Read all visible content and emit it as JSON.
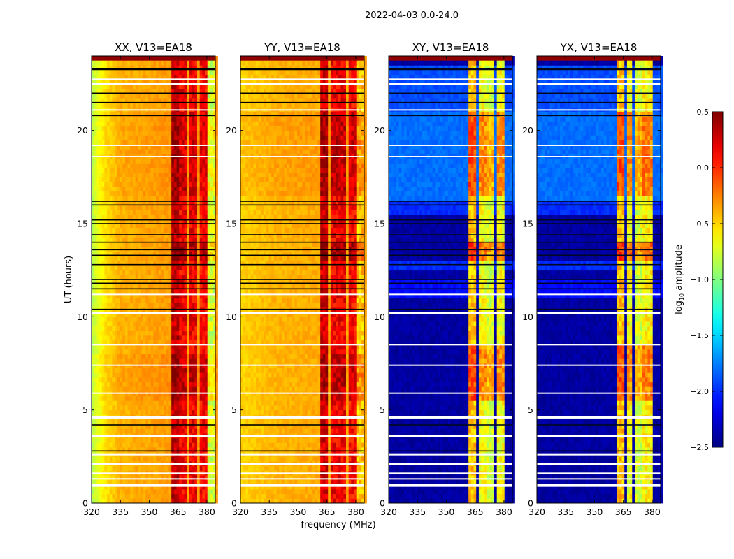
{
  "chart_data": {
    "type": "heatmap",
    "title": "2022-04-03 0.0-24.0",
    "xlabel": "frequency (MHz)",
    "ylabel": "UT (hours)",
    "xlim": [
      320,
      384.4
    ],
    "ylim": [
      0,
      24
    ],
    "xticks": [
      320,
      335,
      350,
      365,
      380
    ],
    "yticks": [
      0,
      5,
      10,
      15,
      20
    ],
    "time_bin_hours": 0.25,
    "channel_width_mhz": 1.34,
    "colorbar": {
      "label_main": "log",
      "label_sub": "10",
      "label_rest": " amplitude",
      "colormap": "jet",
      "range": [
        -2.5,
        0.5
      ],
      "ticks": [
        "0.5",
        "0.0",
        "−0.5",
        "−1.0",
        "−1.5",
        "−2.0",
        "−2.5"
      ],
      "tick_values": [
        0.5,
        0.0,
        -0.5,
        -1.0,
        -1.5,
        -2.0,
        -2.5
      ]
    },
    "flagged_white_hours": [
      [
        0.95,
        0.15
      ],
      [
        1.3,
        0.06
      ],
      [
        1.6,
        0.06
      ],
      [
        2.1,
        0.06
      ],
      [
        2.6,
        0.06
      ],
      [
        3.6,
        0.06
      ],
      [
        4.6,
        0.12
      ],
      [
        5.9,
        0.05
      ],
      [
        7.4,
        0.05
      ],
      [
        8.5,
        0.05
      ],
      [
        10.2,
        0.08
      ],
      [
        11.2,
        0.06
      ],
      [
        18.6,
        0.06
      ],
      [
        19.2,
        0.05
      ],
      [
        21.1,
        0.06
      ],
      [
        22.5,
        0.06
      ],
      [
        22.75,
        0.05
      ]
    ],
    "zero_black_hours": [
      [
        2.8,
        0.05
      ],
      [
        4.2,
        0.06
      ],
      [
        10.4,
        0.06
      ],
      [
        11.5,
        0.05
      ],
      [
        11.8,
        0.05
      ],
      [
        12.0,
        0.05
      ],
      [
        12.8,
        0.05
      ],
      [
        13.3,
        0.05
      ],
      [
        13.6,
        0.05
      ],
      [
        14.0,
        0.05
      ],
      [
        14.4,
        0.05
      ],
      [
        15.0,
        0.05
      ],
      [
        15.2,
        0.05
      ],
      [
        16.0,
        0.05
      ],
      [
        16.2,
        0.05
      ],
      [
        20.8,
        0.06
      ],
      [
        21.5,
        0.05
      ],
      [
        22.0,
        0.05
      ],
      [
        23.3,
        0.12
      ]
    ],
    "saturated_top_hours": [
      23.75,
      24.0,
      0.45
    ],
    "panels": [
      {
        "title": "XX, V13=EA18",
        "base_profile": [
          [
            320,
            -0.85
          ],
          [
            327,
            -0.55
          ],
          [
            335,
            -0.4
          ],
          [
            362,
            -0.33
          ],
          [
            384.4,
            -0.33
          ]
        ],
        "bands": [
          [
            362,
            365.5,
            0.3
          ],
          [
            366.2,
            370,
            0.15
          ],
          [
            370.6,
            375,
            0.15
          ],
          [
            376,
            380,
            0.1
          ],
          [
            380.3,
            384.4,
            -0.75
          ]
        ],
        "background_boost": [
          [
            5.5,
            8,
            0.05
          ],
          [
            16.5,
            21,
            0.03
          ]
        ],
        "band_boost": [
          [
            5.5,
            8,
            0.15
          ],
          [
            13,
            14,
            0.2
          ],
          [
            16.5,
            21,
            0.1
          ]
        ]
      },
      {
        "title": "YY, V13=EA18",
        "base_profile": [
          [
            320,
            -0.5
          ],
          [
            340,
            -0.4
          ],
          [
            384.4,
            -0.35
          ]
        ],
        "bands": [
          [
            362,
            366,
            0.25
          ],
          [
            366.8,
            370.5,
            0.15
          ],
          [
            371.2,
            375.5,
            0.15
          ],
          [
            376.3,
            380.3,
            0.1
          ],
          [
            380.5,
            384.4,
            -0.45
          ]
        ],
        "background_boost": [
          [
            16.5,
            21,
            0.05
          ]
        ],
        "band_boost": [
          [
            5.5,
            8,
            0.15
          ],
          [
            13,
            14,
            0.25
          ],
          [
            16.5,
            21,
            0.15
          ]
        ]
      },
      {
        "title": "XY, V13=EA18",
        "base_profile": [
          [
            320,
            -2.4
          ],
          [
            384.4,
            -2.4
          ]
        ],
        "bands": [
          [
            361.5,
            366,
            -0.45
          ],
          [
            366.6,
            370.3,
            -0.65
          ],
          [
            370.9,
            375.2,
            -0.75
          ],
          [
            375.8,
            380,
            -0.65
          ]
        ],
        "background_boost": [
          [
            11,
            12,
            0.3
          ],
          [
            12.5,
            13,
            0.4
          ],
          [
            15.5,
            16.2,
            0.4
          ],
          [
            16.2,
            21,
            0.6
          ],
          [
            21,
            23.5,
            0.5
          ]
        ],
        "band_boost": [
          [
            5.5,
            8.5,
            0.35
          ],
          [
            13,
            14,
            0.4
          ],
          [
            16.5,
            21,
            0.35
          ]
        ]
      },
      {
        "title": "YX, V13=EA18",
        "base_profile": [
          [
            320,
            -2.4
          ],
          [
            384.4,
            -2.4
          ]
        ],
        "bands": [
          [
            361.5,
            365.7,
            -0.45
          ],
          [
            366.3,
            370,
            -0.65
          ],
          [
            370.7,
            375,
            -0.75
          ],
          [
            375.6,
            380,
            -0.6
          ]
        ],
        "background_boost": [
          [
            11,
            12,
            0.3
          ],
          [
            12.5,
            13,
            0.4
          ],
          [
            15.5,
            16.2,
            0.4
          ],
          [
            16.2,
            21,
            0.6
          ],
          [
            21,
            23.5,
            0.5
          ]
        ],
        "band_boost": [
          [
            5.5,
            8.5,
            0.35
          ],
          [
            13,
            14,
            0.4
          ],
          [
            16.5,
            21,
            0.35
          ]
        ]
      }
    ]
  }
}
